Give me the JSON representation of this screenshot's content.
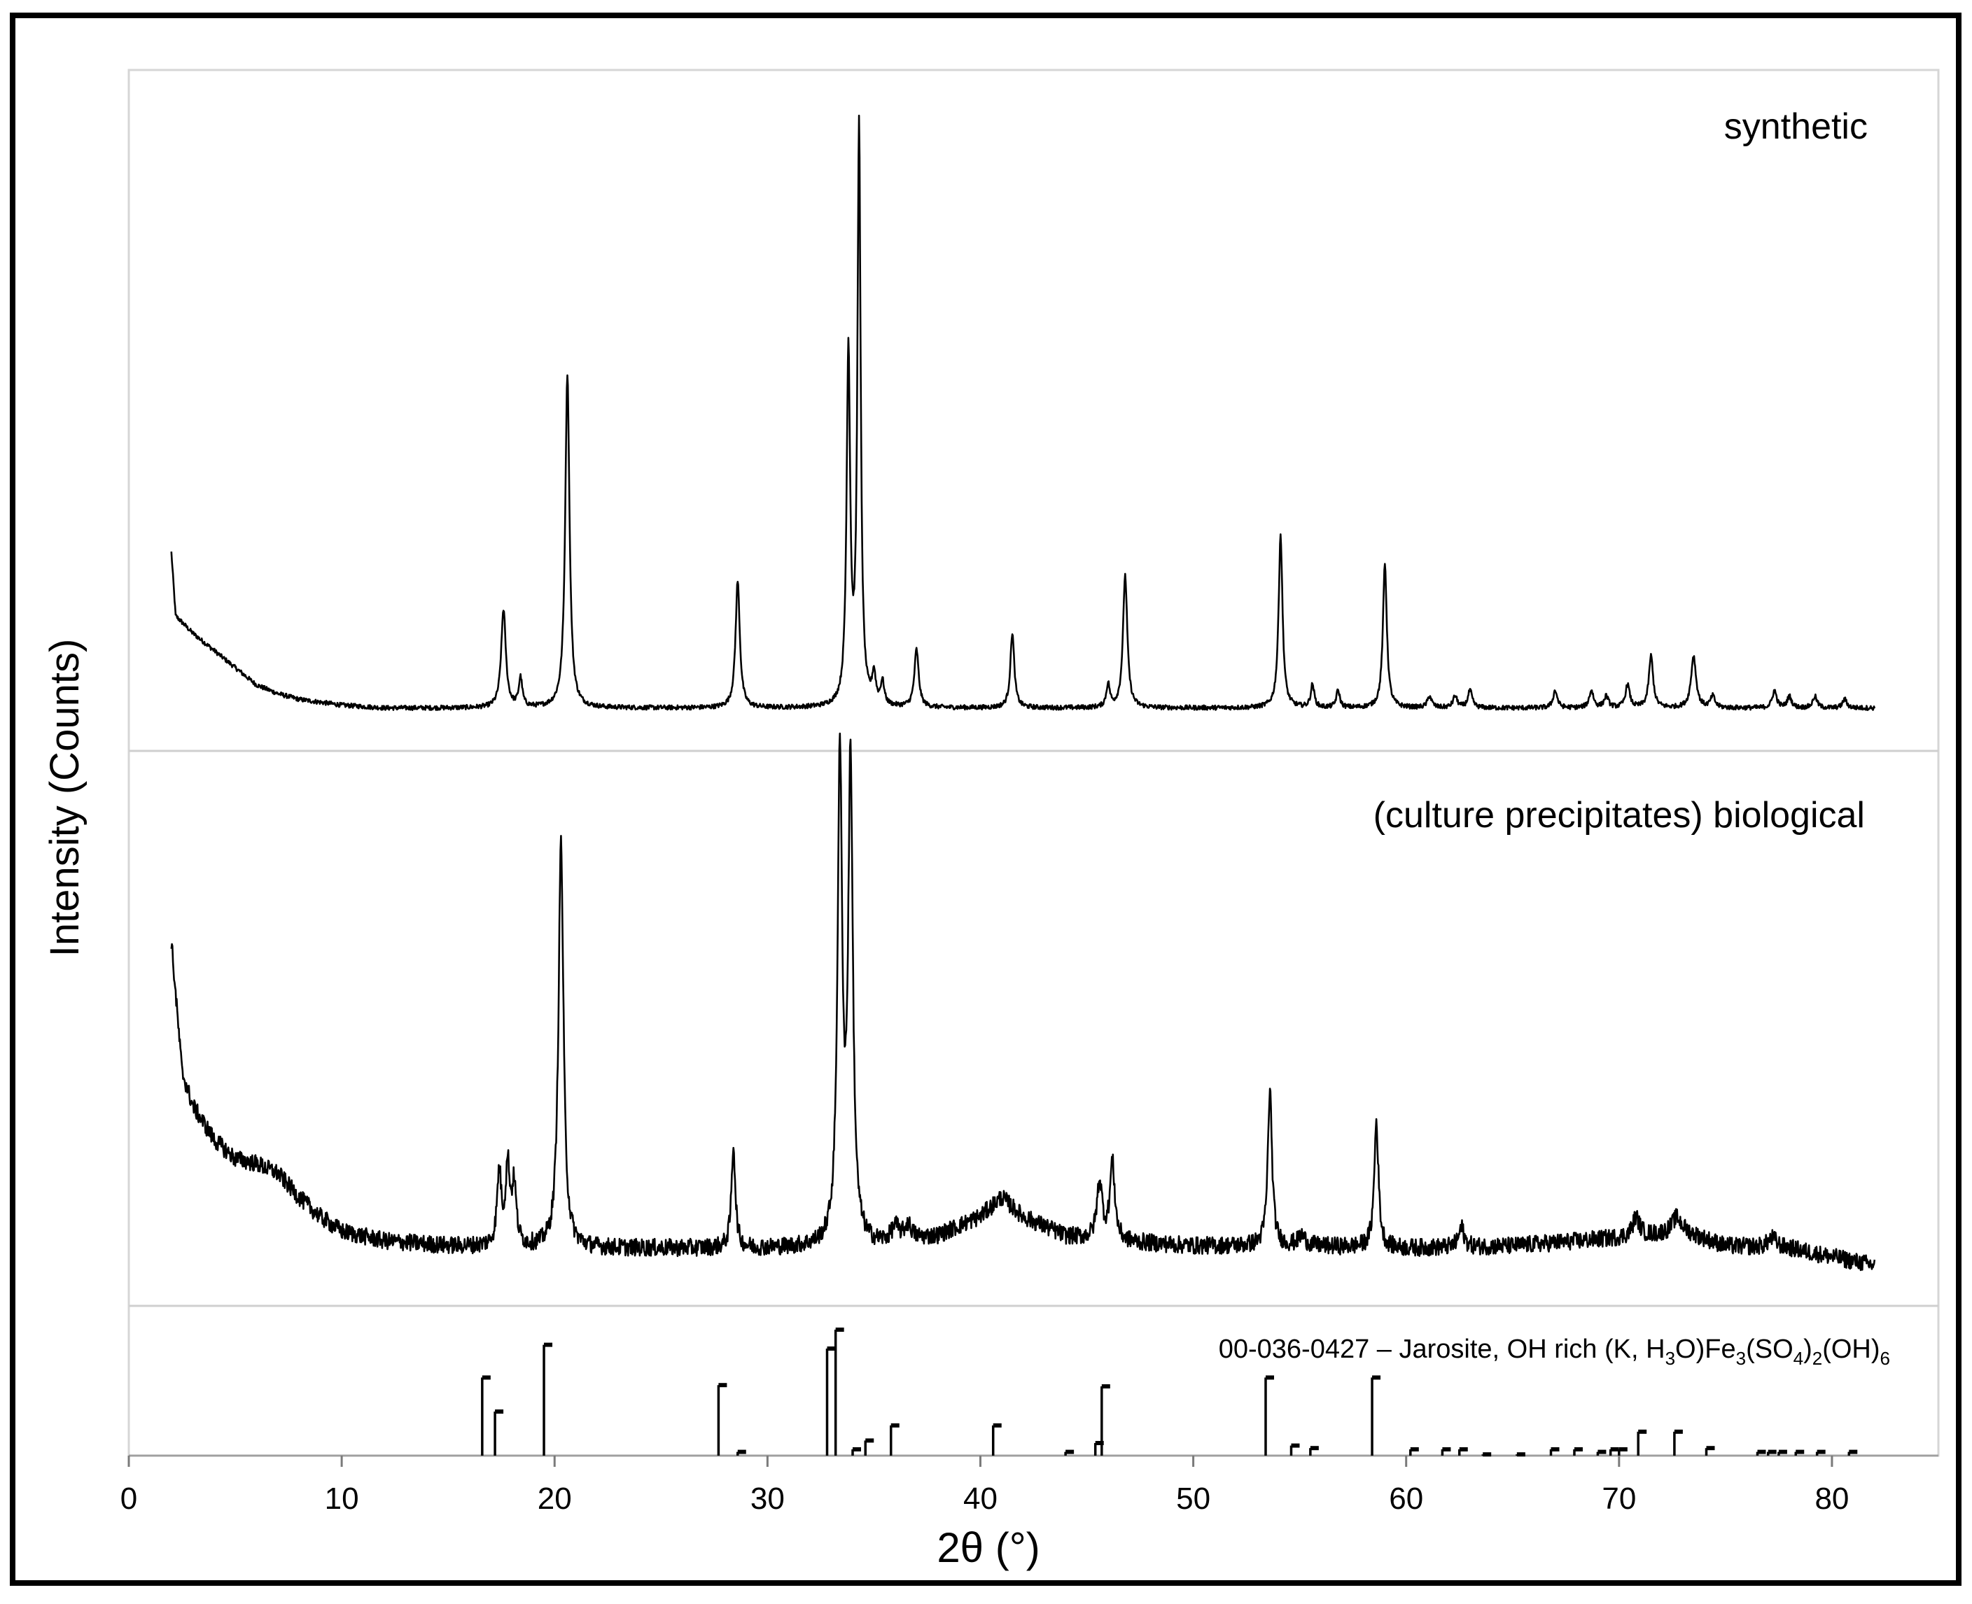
{
  "chart_data": {
    "type": "line",
    "title": "",
    "xlabel": "2θ (°)",
    "ylabel": "Intensity (Counts)",
    "xlim": [
      0,
      85
    ],
    "xticks": [
      0,
      10,
      20,
      30,
      40,
      50,
      60,
      70,
      80
    ],
    "grid": false,
    "panels": [
      {
        "name": "synthetic",
        "label": "synthetic",
        "x_range": [
          2,
          82
        ],
        "baseline": 0.0,
        "background": [
          [
            2.0,
            0.28
          ],
          [
            2.2,
            0.17
          ],
          [
            3.0,
            0.14
          ],
          [
            4.0,
            0.11
          ],
          [
            5.0,
            0.08
          ],
          [
            6.0,
            0.05
          ],
          [
            7.0,
            0.035
          ],
          [
            8.0,
            0.025
          ],
          [
            9.0,
            0.02
          ],
          [
            10.0,
            0.015
          ],
          [
            12.0,
            0.01
          ],
          [
            15.0,
            0.01
          ],
          [
            82.0,
            0.01
          ]
        ],
        "peaks": [
          [
            17.6,
            0.17,
            0.13
          ],
          [
            18.4,
            0.05,
            0.1
          ],
          [
            20.6,
            0.58,
            0.12
          ],
          [
            28.6,
            0.22,
            0.12
          ],
          [
            33.8,
            0.61,
            0.1
          ],
          [
            34.3,
            1.0,
            0.09
          ],
          [
            35.0,
            0.05,
            0.1
          ],
          [
            35.4,
            0.04,
            0.1
          ],
          [
            37.0,
            0.1,
            0.12
          ],
          [
            41.5,
            0.13,
            0.11
          ],
          [
            46.0,
            0.04,
            0.1
          ],
          [
            46.8,
            0.23,
            0.12
          ],
          [
            54.1,
            0.3,
            0.11
          ],
          [
            55.6,
            0.04,
            0.1
          ],
          [
            56.8,
            0.03,
            0.1
          ],
          [
            59.0,
            0.25,
            0.11
          ],
          [
            61.1,
            0.02,
            0.12
          ],
          [
            62.3,
            0.02,
            0.12
          ],
          [
            63.0,
            0.03,
            0.12
          ],
          [
            67.0,
            0.03,
            0.12
          ],
          [
            68.7,
            0.03,
            0.12
          ],
          [
            69.4,
            0.02,
            0.12
          ],
          [
            70.4,
            0.04,
            0.12
          ],
          [
            71.5,
            0.09,
            0.12
          ],
          [
            73.5,
            0.09,
            0.14
          ],
          [
            74.4,
            0.02,
            0.12
          ],
          [
            77.3,
            0.03,
            0.12
          ],
          [
            78.0,
            0.02,
            0.12
          ],
          [
            79.2,
            0.02,
            0.12
          ],
          [
            80.6,
            0.015,
            0.12
          ]
        ]
      },
      {
        "name": "(culture precipitates) biological",
        "label": "(culture precipitates) biological",
        "x_range": [
          2,
          82
        ],
        "baseline": 0.0,
        "background": [
          [
            2.0,
            0.67
          ],
          [
            2.2,
            0.56
          ],
          [
            2.5,
            0.4
          ],
          [
            3.0,
            0.33
          ],
          [
            4.0,
            0.26
          ],
          [
            5.0,
            0.22
          ],
          [
            6.0,
            0.21
          ],
          [
            7.0,
            0.19
          ],
          [
            8.0,
            0.14
          ],
          [
            9.0,
            0.1
          ],
          [
            10.0,
            0.07
          ],
          [
            12.0,
            0.05
          ],
          [
            15.0,
            0.04
          ],
          [
            20.0,
            0.035
          ],
          [
            30.0,
            0.035
          ],
          [
            35.0,
            0.04
          ],
          [
            38.0,
            0.06
          ],
          [
            40.0,
            0.1
          ],
          [
            41.0,
            0.14
          ],
          [
            42.0,
            0.1
          ],
          [
            44.0,
            0.06
          ],
          [
            46.0,
            0.05
          ],
          [
            50.0,
            0.04
          ],
          [
            55.0,
            0.04
          ],
          [
            60.0,
            0.035
          ],
          [
            65.0,
            0.04
          ],
          [
            68.0,
            0.05
          ],
          [
            71.0,
            0.06
          ],
          [
            73.0,
            0.07
          ],
          [
            75.0,
            0.04
          ],
          [
            78.0,
            0.035
          ],
          [
            82.0,
            0.0
          ]
        ],
        "peaks": [
          [
            17.4,
            0.15,
            0.12
          ],
          [
            17.8,
            0.16,
            0.12
          ],
          [
            18.1,
            0.12,
            0.12
          ],
          [
            20.3,
            0.84,
            0.14
          ],
          [
            28.4,
            0.21,
            0.11
          ],
          [
            33.4,
            0.99,
            0.13
          ],
          [
            33.9,
            0.98,
            0.13
          ],
          [
            36.0,
            0.03,
            0.2
          ],
          [
            36.6,
            0.03,
            0.2
          ],
          [
            45.6,
            0.12,
            0.15
          ],
          [
            46.2,
            0.16,
            0.14
          ],
          [
            53.6,
            0.32,
            0.12
          ],
          [
            55.1,
            0.02,
            0.2
          ],
          [
            58.6,
            0.26,
            0.12
          ],
          [
            62.6,
            0.04,
            0.15
          ],
          [
            70.8,
            0.04,
            0.2
          ],
          [
            72.7,
            0.03,
            0.25
          ],
          [
            77.2,
            0.02,
            0.25
          ]
        ],
        "noise": 0.018
      }
    ],
    "reference_pattern": {
      "label": "00-036-0427 – Jarosite, OH rich (K, H3O)Fe3(SO4)2(OH)6",
      "type": "stick",
      "positions": [
        16.6,
        17.2,
        19.5,
        27.7,
        28.6,
        32.8,
        33.2,
        34.0,
        34.6,
        35.8,
        40.6,
        44.0,
        45.4,
        45.7,
        53.4,
        54.6,
        55.5,
        58.4,
        60.2,
        61.7,
        62.5,
        63.6,
        65.2,
        66.8,
        67.9,
        69.0,
        69.6,
        70.0,
        70.9,
        72.6,
        74.1,
        76.5,
        77.0,
        77.5,
        78.3,
        79.3,
        80.8
      ],
      "intensities": [
        0.62,
        0.35,
        0.88,
        0.56,
        0.03,
        0.85,
        1.0,
        0.05,
        0.12,
        0.24,
        0.24,
        0.03,
        0.1,
        0.55,
        0.62,
        0.08,
        0.06,
        0.62,
        0.05,
        0.05,
        0.05,
        0.01,
        0.01,
        0.05,
        0.05,
        0.03,
        0.05,
        0.05,
        0.19,
        0.19,
        0.06,
        0.03,
        0.03,
        0.03,
        0.03,
        0.03,
        0.03
      ]
    }
  },
  "labels": {
    "synthetic": "synthetic",
    "biological": "(culture precipitates) biological",
    "ref_prefix": "00-036-0427 – Jarosite, OH rich (K, H",
    "ref_sub1": "3",
    "ref_mid1": "O)Fe",
    "ref_sub2": "3",
    "ref_mid2": "(SO",
    "ref_sub3": "4",
    "ref_mid3": ")",
    "ref_sub4": "2",
    "ref_mid4": "(OH)",
    "ref_sub5": "6"
  }
}
